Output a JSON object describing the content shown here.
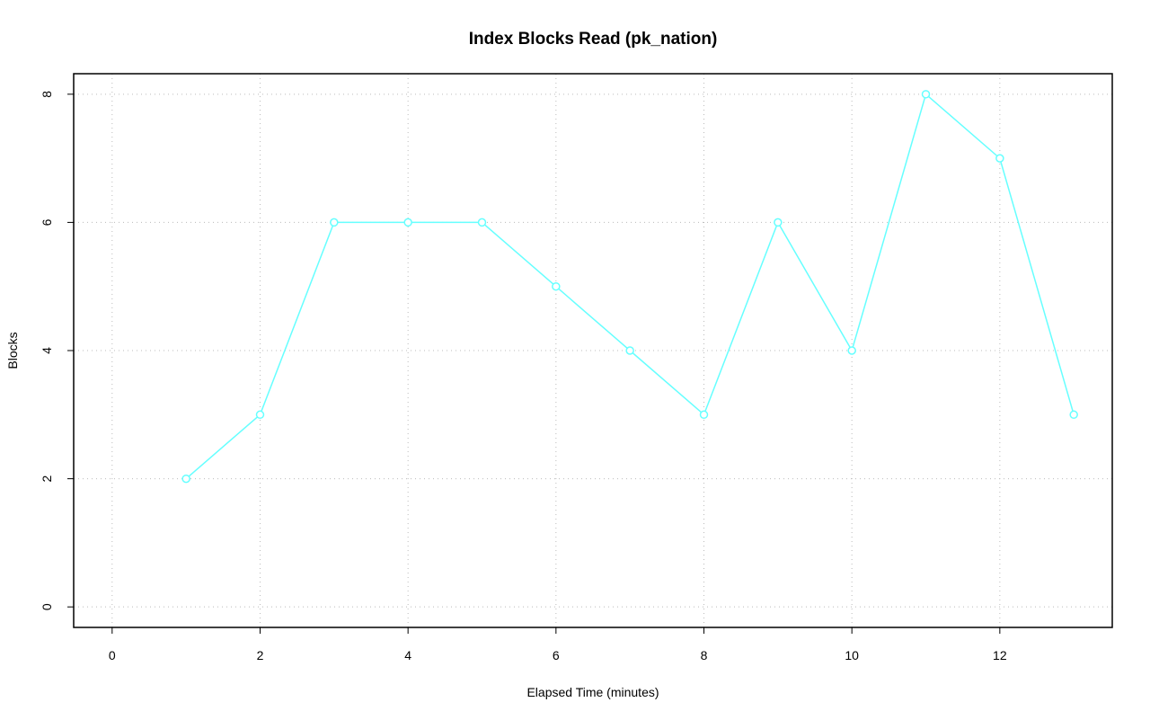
{
  "chart_data": {
    "type": "line",
    "title": "Index Blocks Read (pk_nation)",
    "x_label": "Elapsed Time (minutes)",
    "y_label": "Blocks",
    "x": [
      1,
      2,
      3,
      4,
      5,
      6,
      7,
      8,
      9,
      10,
      11,
      12,
      13
    ],
    "series": [
      {
        "name": "pk_nation",
        "color": "#66ffff",
        "values": [
          2,
          3,
          6,
          6,
          6,
          5,
          4,
          3,
          6,
          4,
          8,
          7,
          3
        ]
      }
    ],
    "xlim": [
      -0.52,
      13.52
    ],
    "ylim": [
      -0.32,
      8.32
    ],
    "xticks": [
      0,
      2,
      4,
      6,
      8,
      10,
      12
    ],
    "yticks": [
      0,
      2,
      4,
      6,
      8
    ],
    "grid": true
  }
}
